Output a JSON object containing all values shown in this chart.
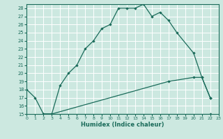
{
  "xlabel": "Humidex (Indice chaleur)",
  "bg_color": "#cce8e0",
  "grid_color": "#b8d8d0",
  "line_color": "#1a6b5a",
  "xlim": [
    0,
    23
  ],
  "ylim": [
    15,
    28.5
  ],
  "xticks": [
    0,
    1,
    2,
    3,
    4,
    5,
    6,
    7,
    8,
    9,
    10,
    11,
    12,
    13,
    14,
    15,
    16,
    17,
    18,
    19,
    20,
    21,
    22,
    23
  ],
  "yticks": [
    15,
    16,
    17,
    18,
    19,
    20,
    21,
    22,
    23,
    24,
    25,
    26,
    27,
    28
  ],
  "line1_x": [
    0,
    1,
    2,
    3,
    4,
    5,
    6,
    7,
    8,
    9,
    10,
    11,
    12,
    13,
    14,
    15,
    16,
    17,
    18,
    20,
    21,
    22
  ],
  "line1_y": [
    18,
    17,
    15,
    15,
    18.5,
    20,
    21,
    23,
    24,
    25.5,
    26,
    28,
    28,
    28,
    28.5,
    27,
    27.5,
    26.5,
    25,
    22.5,
    19.5,
    17
  ],
  "line2_x": [
    2,
    3,
    17,
    20,
    21,
    22
  ],
  "line2_y": [
    15,
    15,
    19.0,
    19.5,
    19.5,
    17
  ],
  "line3_x": [
    2,
    22
  ],
  "line3_y": [
    15,
    15
  ]
}
